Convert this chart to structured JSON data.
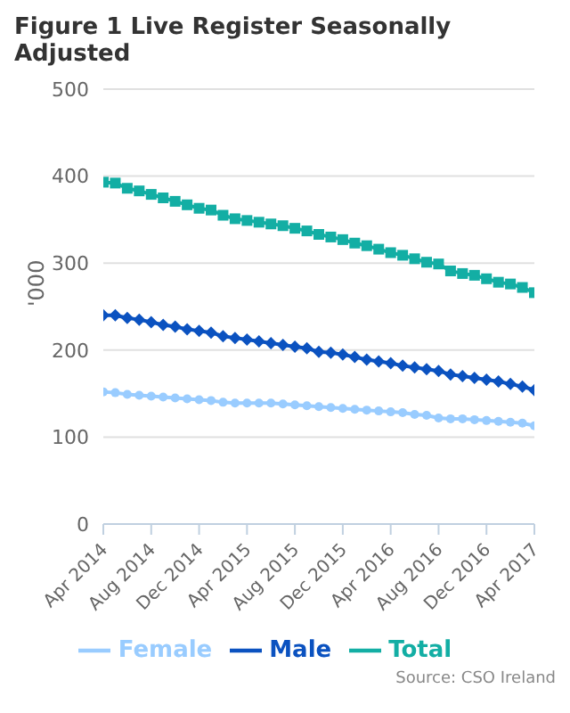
{
  "chart_data": {
    "type": "line",
    "title": "Figure 1 Live Register Seasonally Adjusted",
    "ylabel": "'000",
    "categories": [
      "Apr 2014",
      null,
      null,
      null,
      "Aug 2014",
      null,
      null,
      null,
      "Dec 2014",
      null,
      null,
      null,
      "Apr 2015",
      null,
      null,
      null,
      "Aug 2015",
      null,
      null,
      null,
      "Dec 2015",
      null,
      null,
      null,
      "Apr 2016",
      null,
      null,
      null,
      "Aug 2016",
      null,
      null,
      null,
      "Dec 2016",
      null,
      null,
      null,
      "Apr 2017"
    ],
    "series": [
      {
        "name": "Male",
        "color": "#0b52c0",
        "marker": "diamond",
        "values": [
          240,
          240,
          237,
          235,
          232,
          229,
          227,
          224,
          222,
          220,
          216,
          214,
          212,
          210,
          208,
          206,
          204,
          202,
          198,
          197,
          195,
          192,
          189,
          187,
          185,
          182,
          180,
          178,
          176,
          172,
          170,
          168,
          166,
          164,
          161,
          158,
          154
        ]
      },
      {
        "name": "Female",
        "color": "#99ccff",
        "marker": "circle",
        "values": [
          152,
          151,
          149,
          148,
          147,
          146,
          145,
          144,
          143,
          142,
          140,
          139,
          139,
          139,
          139,
          138,
          137,
          136,
          135,
          134,
          133,
          132,
          131,
          130,
          129,
          128,
          126,
          125,
          122,
          121,
          121,
          120,
          119,
          118,
          117,
          116,
          113
        ]
      },
      {
        "name": "Total",
        "color": "#13aea4",
        "marker": "square",
        "values": [
          393,
          392,
          386,
          383,
          379,
          375,
          371,
          367,
          363,
          361,
          355,
          351,
          349,
          347,
          345,
          343,
          340,
          337,
          333,
          330,
          327,
          323,
          320,
          316,
          312,
          309,
          305,
          301,
          299,
          291,
          288,
          286,
          282,
          278,
          276,
          272,
          266
        ]
      }
    ],
    "ylim": [
      0,
      500
    ],
    "yticks": [
      0,
      100,
      200,
      300,
      400,
      500
    ],
    "grid": "y",
    "legend": "bottom",
    "line_style": "solid",
    "annotations": [
      "Source: CSO Ireland"
    ]
  }
}
